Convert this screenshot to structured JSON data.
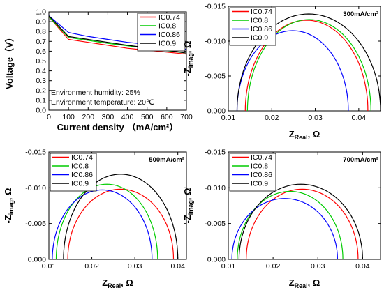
{
  "chart_data": [
    {
      "type": "line",
      "xlabel": "Current density",
      "xlabel_unit": "（mA/cm²）",
      "ylabel": "Voltage（V）",
      "xlim": [
        0,
        700
      ],
      "ylim": [
        0,
        1.0
      ],
      "xticks": [
        0,
        100,
        200,
        300,
        400,
        500,
        600,
        700
      ],
      "yticks": [
        0.0,
        0.1,
        0.2,
        0.3,
        0.4,
        0.5,
        0.6,
        0.7,
        0.8,
        0.9,
        1.0
      ],
      "annotations": [
        "Environment humidity: 25%",
        "Environment temperature: 20℃"
      ],
      "legend_position": "top-right",
      "x": [
        0,
        100,
        200,
        300,
        400,
        500,
        600,
        700
      ],
      "series": [
        {
          "name": "IC0.74",
          "color": "#ff0000",
          "values": [
            0.95,
            0.72,
            0.69,
            0.66,
            0.63,
            0.61,
            0.59,
            0.57
          ]
        },
        {
          "name": "IC0.8",
          "color": "#00cc00",
          "values": [
            0.95,
            0.74,
            0.71,
            0.68,
            0.655,
            0.63,
            0.605,
            0.58
          ]
        },
        {
          "name": "IC0.86",
          "color": "#0000ff",
          "values": [
            0.96,
            0.79,
            0.75,
            0.72,
            0.69,
            0.67,
            0.64,
            0.62
          ]
        },
        {
          "name": "IC0.9",
          "color": "#000000",
          "values": [
            0.96,
            0.75,
            0.72,
            0.69,
            0.66,
            0.635,
            0.61,
            0.58
          ]
        }
      ]
    },
    {
      "type": "scatter",
      "title": "300mA/cm²",
      "xlabel": "Z",
      "xlabel_sub": "Real",
      "xlabel_unit": ", Ω",
      "ylabel": "-Z",
      "ylabel_sub": "imag",
      "ylabel_unit": ", Ω",
      "xlim": [
        0.01,
        0.045
      ],
      "ylim": [
        0,
        -0.015
      ],
      "xticks": [
        0.01,
        0.02,
        0.03,
        0.04
      ],
      "yticks": [
        0.0,
        -0.005,
        -0.01,
        -0.015
      ],
      "legend_position": "top-left",
      "series": [
        {
          "name": "IC0.74",
          "color": "#ff0000",
          "center": 0.028,
          "half_width": 0.0141,
          "peak": -0.013
        },
        {
          "name": "IC0.8",
          "color": "#00cc00",
          "center": 0.0286,
          "half_width": 0.0142,
          "peak": -0.0131
        },
        {
          "name": "IC0.86",
          "color": "#0000ff",
          "center": 0.0248,
          "half_width": 0.0128,
          "peak": -0.0115
        },
        {
          "name": "IC0.9",
          "color": "#000000",
          "center": 0.0285,
          "half_width": 0.0165,
          "peak": -0.0139
        }
      ]
    },
    {
      "type": "scatter",
      "title": "500mA/cm²",
      "xlabel": "Z",
      "xlabel_sub": "Real",
      "xlabel_unit": ", Ω",
      "ylabel": "-Z",
      "ylabel_sub": "imag",
      "ylabel_unit": ", Ω",
      "xlim": [
        0.01,
        0.042
      ],
      "ylim": [
        0,
        -0.015
      ],
      "xticks": [
        0.01,
        0.02,
        0.03,
        0.04
      ],
      "yticks": [
        0.0,
        -0.005,
        -0.01,
        -0.015
      ],
      "legend_position": "top-left",
      "series": [
        {
          "name": "IC0.74",
          "color": "#ff0000",
          "center": 0.0267,
          "half_width": 0.0123,
          "peak": -0.0098
        },
        {
          "name": "IC0.8",
          "color": "#00cc00",
          "center": 0.0235,
          "half_width": 0.0118,
          "peak": -0.0105
        },
        {
          "name": "IC0.86",
          "color": "#0000ff",
          "center": 0.0224,
          "half_width": 0.0116,
          "peak": -0.0097
        },
        {
          "name": "IC0.9",
          "color": "#000000",
          "center": 0.0267,
          "half_width": 0.0133,
          "peak": -0.0119
        }
      ]
    },
    {
      "type": "scatter",
      "title": "700mA/cm²",
      "xlabel": "Z",
      "xlabel_sub": "Real",
      "xlabel_unit": ", Ω",
      "ylabel": "-Z",
      "ylabel_sub": "imag",
      "ylabel_unit": ", Ω",
      "xlim": [
        0.01,
        0.044
      ],
      "ylim": [
        0,
        -0.015
      ],
      "xticks": [
        0.01,
        0.02,
        0.03,
        0.04
      ],
      "yticks": [
        0.0,
        -0.005,
        -0.01,
        -0.015
      ],
      "legend_position": "top-left",
      "series": [
        {
          "name": "IC0.74",
          "color": "#ff0000",
          "center": 0.0265,
          "half_width": 0.0125,
          "peak": -0.0098
        },
        {
          "name": "IC0.8",
          "color": "#00cc00",
          "center": 0.0238,
          "half_width": 0.0118,
          "peak": -0.0095
        },
        {
          "name": "IC0.86",
          "color": "#0000ff",
          "center": 0.0226,
          "half_width": 0.0118,
          "peak": -0.0085
        },
        {
          "name": "IC0.9",
          "color": "#000000",
          "center": 0.0262,
          "half_width": 0.0138,
          "peak": -0.0105
        }
      ]
    }
  ]
}
